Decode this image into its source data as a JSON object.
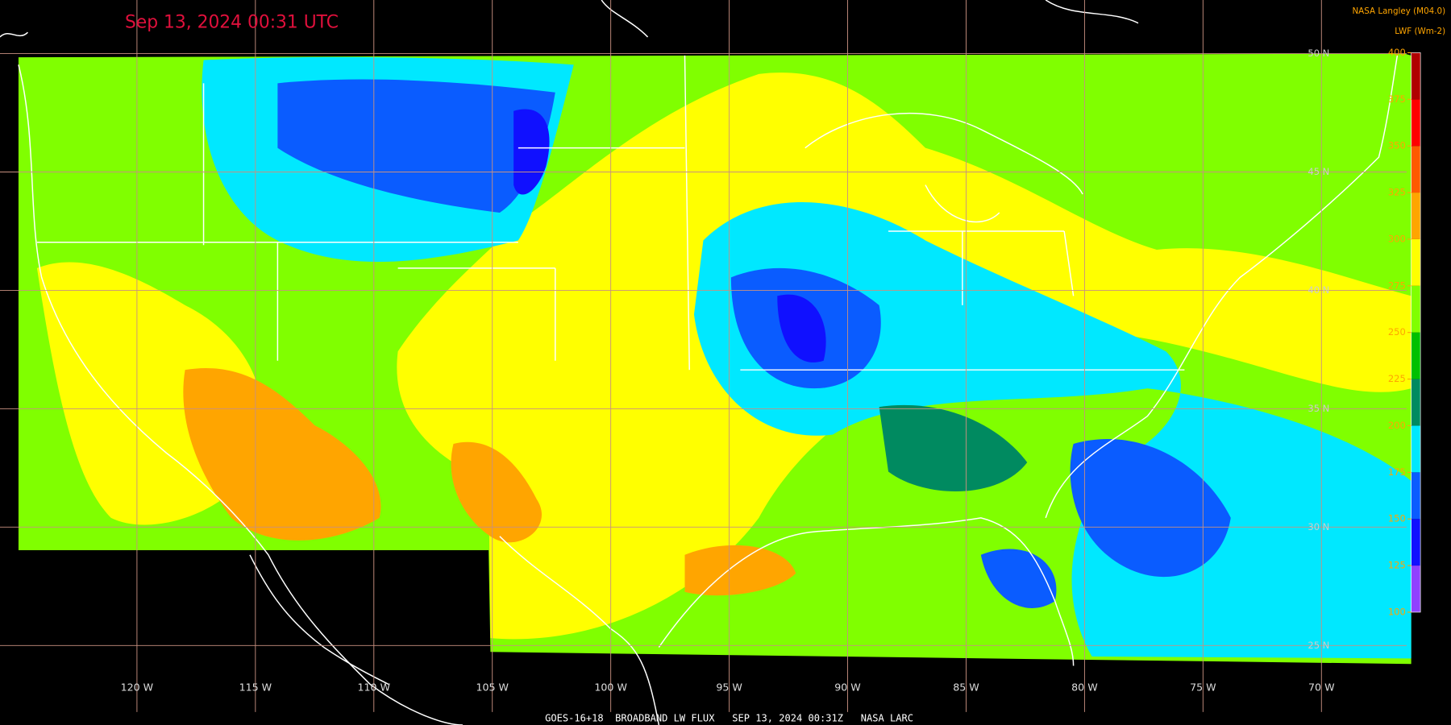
{
  "title": "Sep 13, 2024 00:31 UTC",
  "source": "NASA Langley (M04.0)",
  "footer": "GOES-16+18  BROADBAND LW FLUX   SEP 13, 2024 00:31Z   NASA LARC",
  "colorbar": {
    "label": "LWF (Wm-2)",
    "ticks": [
      100,
      125,
      150,
      175,
      200,
      225,
      250,
      275,
      300,
      325,
      350,
      375,
      400
    ],
    "colors": [
      "#9040ff",
      "#1010ff",
      "#0a5cff",
      "#00e8ff",
      "#008a60",
      "#00c000",
      "#80ff00",
      "#ffff00",
      "#ffa500",
      "#ff5a00",
      "#ff0000",
      "#b00000",
      "#6a0000"
    ]
  },
  "longitudes": [
    "120 W",
    "115 W",
    "110 W",
    "105 W",
    "100 W",
    "95 W",
    "90 W",
    "85 W",
    "80 W",
    "75 W",
    "70 W"
  ],
  "latitudes": [
    "50 N",
    "45 N",
    "40 N",
    "35 N",
    "30 N",
    "25 N"
  ]
}
